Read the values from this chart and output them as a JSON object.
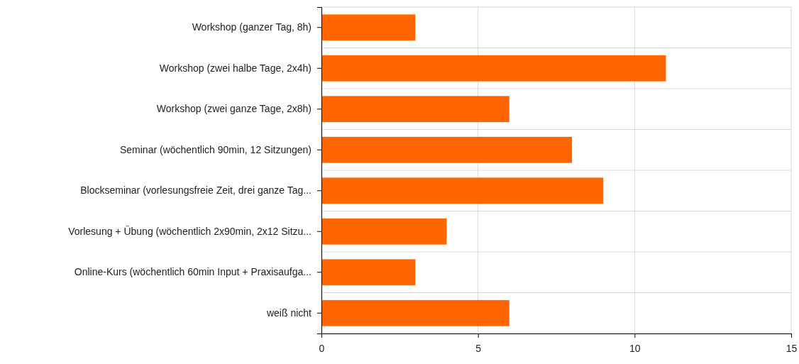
{
  "chart_data": {
    "type": "bar",
    "orientation": "horizontal",
    "categories": [
      "Workshop (ganzer Tag, 8h)",
      "Workshop (zwei halbe Tage, 2x4h)",
      "Workshop (zwei ganze Tage, 2x8h)",
      "Seminar (wöchentlich 90min, 12 Sitzungen)",
      "Blockseminar (vorlesungsfreie Zeit, drei ganze Tag...",
      "Vorlesung + Übung (wöchentlich 2x90min, 2x12 Sitzu...",
      "Online-Kurs (wöchentlich 60min Input + Praxisaufga...",
      "weiß nicht"
    ],
    "values": [
      3,
      11,
      6,
      8,
      9,
      4,
      3,
      6
    ],
    "color": "#ff6600",
    "xlim": [
      0,
      15
    ],
    "xticks": [
      0,
      5,
      10,
      15
    ],
    "grid": true
  }
}
